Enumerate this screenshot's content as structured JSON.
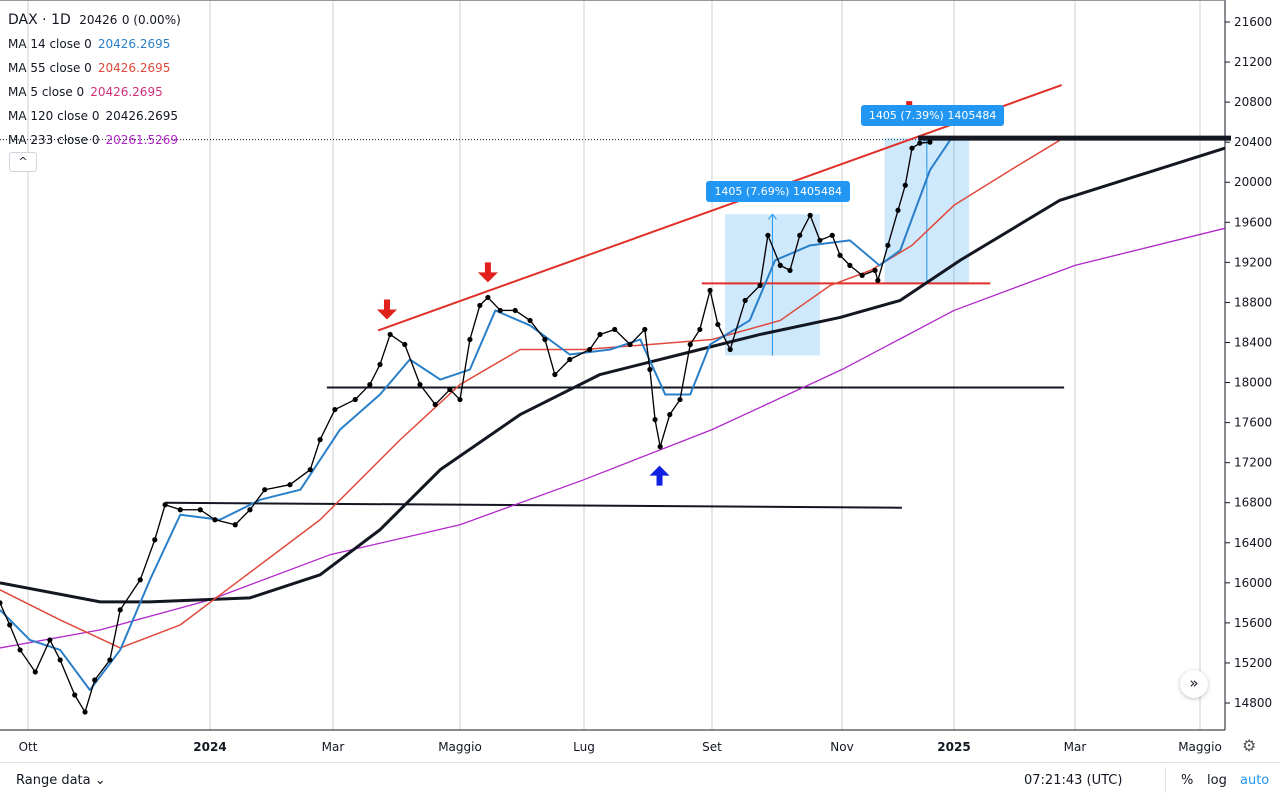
{
  "legend": {
    "symbol": "DAX",
    "interval": "1D",
    "price": "20426",
    "change": "0 (0.00%)",
    "mas": [
      {
        "label": "MA 14 close 0",
        "value": "20426.2695",
        "color": "#2a7fc9"
      },
      {
        "label": "MA 55 close 0",
        "value": "20426.2695",
        "color": "#e0493b"
      },
      {
        "label": "MA 5 close 0",
        "value": "20426.2695",
        "color": "#d0307a"
      },
      {
        "label": "MA 120 close 0",
        "value": "20426.2695",
        "color": "#131722"
      },
      {
        "label": "MA 233 close 0",
        "value": "20261.5269",
        "color": "#b027c9"
      }
    ],
    "collapse": "^"
  },
  "chart_data": {
    "type": "line",
    "ylim": [
      14600,
      21800
    ],
    "yticks": [
      14800,
      15200,
      15600,
      16000,
      16400,
      16800,
      17200,
      17600,
      18000,
      18400,
      18800,
      19200,
      19600,
      20000,
      20400,
      20800,
      21200,
      21600
    ],
    "xticks": [
      {
        "m": 0,
        "label": "Ott"
      },
      {
        "m": 3,
        "label": "2024",
        "bold": true
      },
      {
        "m": 5,
        "label": "Mar"
      },
      {
        "m": 7,
        "label": "Maggio"
      },
      {
        "m": 9,
        "label": "Lug"
      },
      {
        "m": 11,
        "label": "Set"
      },
      {
        "m": 13,
        "label": "Nov"
      },
      {
        "m": 15,
        "label": "2025",
        "bold": true
      },
      {
        "m": 17,
        "label": "Mar"
      },
      {
        "m": 19,
        "label": "Maggio"
      }
    ],
    "x_unit": "months since 2023-10-01",
    "close": [
      [
        -0.46,
        15800
      ],
      [
        -0.3,
        15580
      ],
      [
        -0.13,
        15330
      ],
      [
        0.12,
        15110
      ],
      [
        0.36,
        15430
      ],
      [
        0.53,
        15230
      ],
      [
        0.77,
        14880
      ],
      [
        0.94,
        14710
      ],
      [
        1.1,
        15030
      ],
      [
        1.35,
        15230
      ],
      [
        1.52,
        15730
      ],
      [
        1.85,
        16030
      ],
      [
        2.09,
        16430
      ],
      [
        2.26,
        16780
      ],
      [
        2.51,
        16730
      ],
      [
        2.84,
        16730
      ],
      [
        3.08,
        16630
      ],
      [
        3.41,
        16580
      ],
      [
        3.65,
        16730
      ],
      [
        3.89,
        16930
      ],
      [
        4.3,
        16980
      ],
      [
        4.63,
        17130
      ],
      [
        4.79,
        17430
      ],
      [
        5.03,
        17730
      ],
      [
        5.35,
        17830
      ],
      [
        5.58,
        17980
      ],
      [
        5.74,
        18180
      ],
      [
        5.9,
        18480
      ],
      [
        6.13,
        18380
      ],
      [
        6.37,
        17980
      ],
      [
        6.61,
        17780
      ],
      [
        6.84,
        17930
      ],
      [
        7.0,
        17830
      ],
      [
        7.16,
        18430
      ],
      [
        7.32,
        18770
      ],
      [
        7.45,
        18850
      ],
      [
        7.65,
        18720
      ],
      [
        7.89,
        18720
      ],
      [
        8.13,
        18620
      ],
      [
        8.37,
        18430
      ],
      [
        8.53,
        18080
      ],
      [
        8.77,
        18230
      ],
      [
        9.09,
        18330
      ],
      [
        9.25,
        18480
      ],
      [
        9.48,
        18530
      ],
      [
        9.72,
        18380
      ],
      [
        9.95,
        18530
      ],
      [
        10.03,
        18130
      ],
      [
        10.11,
        17630
      ],
      [
        10.19,
        17360
      ],
      [
        10.34,
        17680
      ],
      [
        10.5,
        17830
      ],
      [
        10.66,
        18380
      ],
      [
        10.81,
        18530
      ],
      [
        10.97,
        18920
      ],
      [
        11.09,
        18580
      ],
      [
        11.28,
        18330
      ],
      [
        11.51,
        18820
      ],
      [
        11.74,
        18970
      ],
      [
        11.86,
        19470
      ],
      [
        12.05,
        19170
      ],
      [
        12.2,
        19120
      ],
      [
        12.35,
        19470
      ],
      [
        12.51,
        19670
      ],
      [
        12.66,
        19420
      ],
      [
        12.85,
        19470
      ],
      [
        12.97,
        19270
      ],
      [
        13.14,
        19170
      ],
      [
        13.36,
        19070
      ],
      [
        13.59,
        19120
      ],
      [
        13.64,
        19020
      ],
      [
        13.82,
        19370
      ],
      [
        14.0,
        19720
      ],
      [
        14.13,
        19970
      ],
      [
        14.25,
        20340
      ],
      [
        14.39,
        20390
      ],
      [
        14.57,
        20400
      ]
    ],
    "ma14": [
      [
        -0.46,
        15730
      ],
      [
        0.03,
        15430
      ],
      [
        0.53,
        15330
      ],
      [
        1.02,
        14930
      ],
      [
        1.52,
        15330
      ],
      [
        2.01,
        16030
      ],
      [
        2.51,
        16680
      ],
      [
        3.16,
        16630
      ],
      [
        3.82,
        16830
      ],
      [
        4.47,
        16930
      ],
      [
        5.11,
        17530
      ],
      [
        5.74,
        17880
      ],
      [
        6.21,
        18230
      ],
      [
        6.69,
        18030
      ],
      [
        7.16,
        18130
      ],
      [
        7.57,
        18720
      ],
      [
        8.13,
        18570
      ],
      [
        8.77,
        18280
      ],
      [
        9.41,
        18330
      ],
      [
        9.88,
        18430
      ],
      [
        10.27,
        17880
      ],
      [
        10.66,
        17880
      ],
      [
        10.97,
        18380
      ],
      [
        11.58,
        18620
      ],
      [
        11.97,
        19220
      ],
      [
        12.51,
        19370
      ],
      [
        13.14,
        19420
      ],
      [
        13.67,
        19170
      ],
      [
        14.04,
        19320
      ],
      [
        14.57,
        20120
      ],
      [
        14.93,
        20420
      ]
    ],
    "ma55": [
      [
        -0.46,
        15930
      ],
      [
        0.53,
        15630
      ],
      [
        1.52,
        15350
      ],
      [
        2.51,
        15580
      ],
      [
        3.49,
        16030
      ],
      [
        4.79,
        16630
      ],
      [
        6.06,
        17430
      ],
      [
        7.0,
        17980
      ],
      [
        7.97,
        18330
      ],
      [
        9.0,
        18330
      ],
      [
        10.03,
        18380
      ],
      [
        11.0,
        18430
      ],
      [
        12.05,
        18620
      ],
      [
        12.82,
        18970
      ],
      [
        13.51,
        19120
      ],
      [
        14.25,
        19370
      ],
      [
        15.0,
        19770
      ],
      [
        15.93,
        20120
      ],
      [
        16.75,
        20420
      ]
    ],
    "ma120": [
      [
        -0.46,
        16000
      ],
      [
        1.19,
        15810
      ],
      [
        2.01,
        15810
      ],
      [
        3.65,
        15850
      ],
      [
        4.79,
        16080
      ],
      [
        5.74,
        16530
      ],
      [
        6.69,
        17130
      ],
      [
        7.97,
        17680
      ],
      [
        9.25,
        18080
      ],
      [
        10.5,
        18280
      ],
      [
        11.74,
        18480
      ],
      [
        12.97,
        18650
      ],
      [
        14.04,
        18820
      ],
      [
        15.1,
        19220
      ],
      [
        16.75,
        19820
      ],
      [
        19.4,
        20340
      ]
    ],
    "ma233": [
      [
        -0.46,
        15350
      ],
      [
        1.19,
        15530
      ],
      [
        3.0,
        15830
      ],
      [
        4.95,
        16280
      ],
      [
        7.0,
        16580
      ],
      [
        9.0,
        17030
      ],
      [
        11.0,
        17530
      ],
      [
        13.0,
        18130
      ],
      [
        15.0,
        18720
      ],
      [
        17.0,
        19170
      ],
      [
        19.4,
        19540
      ]
    ],
    "drawings": {
      "trendline": [
        [
          5.71,
          18520
        ],
        [
          16.78,
          20970
        ]
      ],
      "support_lines": [
        [
          [
            4.9,
            17950
          ],
          [
            16.82,
            17950
          ]
        ],
        [
          [
            2.26,
            16800
          ],
          [
            14.07,
            16750
          ]
        ]
      ],
      "red_level": [
        [
          10.84,
          18990
        ],
        [
          15.6,
          18990
        ]
      ],
      "top_level": [
        [
          14.36,
          20440
        ],
        [
          19.5,
          20440
        ]
      ],
      "measures": [
        {
          "from": [
            11.2,
            18270
          ],
          "to": [
            12.66,
            19680
          ],
          "label": "1405 (7.69%) 1405484"
        },
        {
          "from": [
            13.76,
            18990
          ],
          "to": [
            15.25,
            20440
          ],
          "label": "1405 (7.39%) 1405484"
        }
      ],
      "arrows_down": [
        [
          5.85,
          18670
        ],
        [
          7.45,
          19040
        ],
        [
          14.2,
          20650
        ]
      ],
      "arrows_up": [
        [
          10.18,
          17130
        ]
      ]
    }
  },
  "bottom": {
    "range": "Range data ⌄",
    "time": "07:21:43 (UTC)",
    "pct": "%",
    "log": "log",
    "auto": "auto"
  }
}
